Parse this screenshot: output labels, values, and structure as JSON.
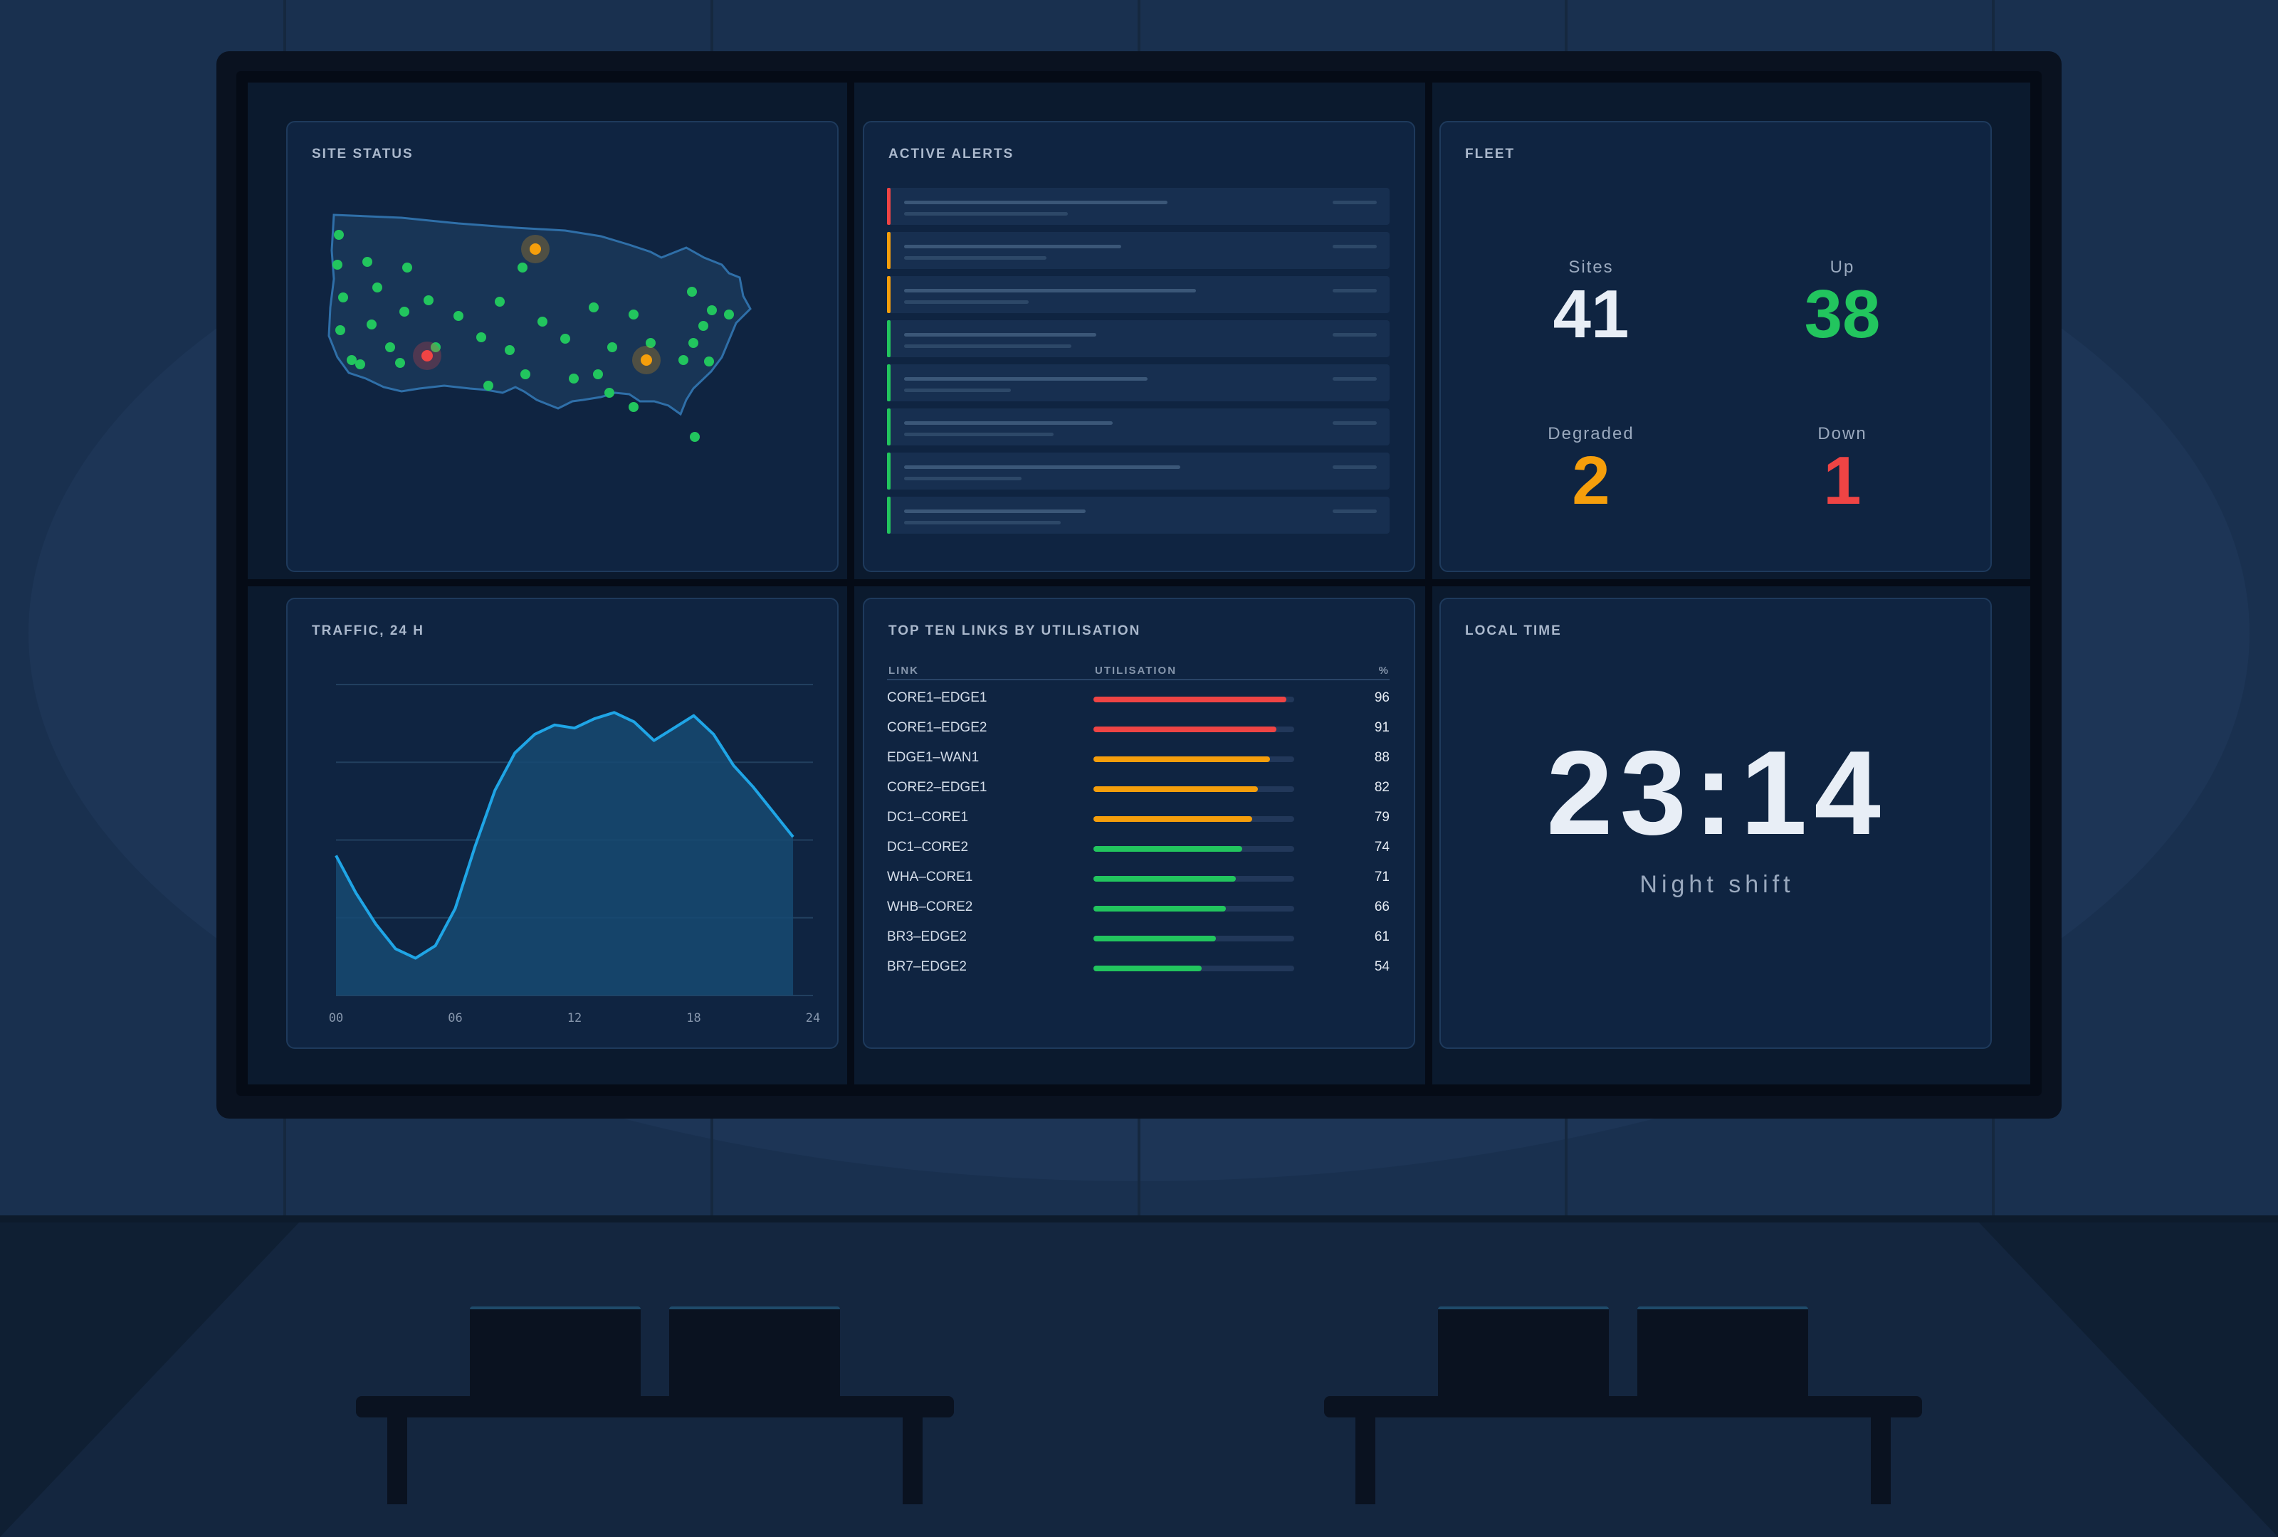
{
  "site_status": {
    "title": "SITE STATUS",
    "colors": {
      "ok": "#22c55e",
      "degraded": "#f59e0b",
      "down": "#ef4444",
      "land": "#183556",
      "outline": "#2f6fa8"
    }
  },
  "alerts": {
    "title": "ACTIVE ALERTS",
    "rows": [
      {
        "severity": "critical",
        "color": "#ef4444"
      },
      {
        "severity": "warning",
        "color": "#f59e0b"
      },
      {
        "severity": "warning",
        "color": "#f59e0b"
      },
      {
        "severity": "info",
        "color": "#22c55e"
      },
      {
        "severity": "info",
        "color": "#22c55e"
      },
      {
        "severity": "info",
        "color": "#22c55e"
      },
      {
        "severity": "info",
        "color": "#22c55e"
      },
      {
        "severity": "info",
        "color": "#22c55e"
      }
    ]
  },
  "fleet": {
    "title": "FLEET",
    "stats": [
      {
        "label": "Sites",
        "value": "41",
        "color": "#e8eef6"
      },
      {
        "label": "Up",
        "value": "38",
        "color": "#22c55e"
      },
      {
        "label": "Degraded",
        "value": "2",
        "color": "#f59e0b"
      },
      {
        "label": "Down",
        "value": "1",
        "color": "#ef4444"
      }
    ]
  },
  "traffic": {
    "title": "TRAFFIC, 24 H"
  },
  "links": {
    "title": "TOP TEN LINKS BY UTILISATION",
    "headers": {
      "link": "LINK",
      "utilisation": "UTILISATION",
      "pct": "%"
    },
    "rows": [
      {
        "name": "CORE1–EDGE1",
        "pct": "96",
        "value": 96,
        "color": "#ef4444"
      },
      {
        "name": "CORE1–EDGE2",
        "pct": "91",
        "value": 91,
        "color": "#ef4444"
      },
      {
        "name": "EDGE1–WAN1",
        "pct": "88",
        "value": 88,
        "color": "#f59e0b"
      },
      {
        "name": "CORE2–EDGE1",
        "pct": "82",
        "value": 82,
        "color": "#f59e0b"
      },
      {
        "name": "DC1–CORE1",
        "pct": "79",
        "value": 79,
        "color": "#f59e0b"
      },
      {
        "name": "DC1–CORE2",
        "pct": "74",
        "value": 74,
        "color": "#22c55e"
      },
      {
        "name": "WHA–CORE1",
        "pct": "71",
        "value": 71,
        "color": "#22c55e"
      },
      {
        "name": "WHB–CORE2",
        "pct": "66",
        "value": 66,
        "color": "#22c55e"
      },
      {
        "name": "BR3–EDGE2",
        "pct": "61",
        "value": 61,
        "color": "#22c55e"
      },
      {
        "name": "BR7–EDGE2",
        "pct": "54",
        "value": 54,
        "color": "#22c55e"
      }
    ]
  },
  "local_time": {
    "title": "LOCAL TIME",
    "time": "23:14",
    "shift": "Night shift"
  },
  "chart_data": {
    "type": "area",
    "title": "TRAFFIC, 24 H",
    "xlabel": "",
    "ylabel": "",
    "x_ticks": [
      "00",
      "06",
      "12",
      "18",
      "24"
    ],
    "xlim": [
      0,
      24
    ],
    "ylim": [
      0,
      100
    ],
    "grid": true,
    "color": "#1fa5e6",
    "series": [
      {
        "values": [
          {
            "x": 0,
            "y": 45
          },
          {
            "x": 1,
            "y": 33
          },
          {
            "x": 2,
            "y": 23
          },
          {
            "x": 3,
            "y": 15
          },
          {
            "x": 4,
            "y": 12
          },
          {
            "x": 5,
            "y": 16
          },
          {
            "x": 6,
            "y": 28
          },
          {
            "x": 7,
            "y": 48
          },
          {
            "x": 8,
            "y": 66
          },
          {
            "x": 9,
            "y": 78
          },
          {
            "x": 10,
            "y": 84
          },
          {
            "x": 11,
            "y": 87
          },
          {
            "x": 12,
            "y": 86
          },
          {
            "x": 13,
            "y": 89
          },
          {
            "x": 14,
            "y": 91
          },
          {
            "x": 15,
            "y": 88
          },
          {
            "x": 16,
            "y": 82
          },
          {
            "x": 17,
            "y": 86
          },
          {
            "x": 18,
            "y": 90
          },
          {
            "x": 19,
            "y": 84
          },
          {
            "x": 20,
            "y": 74
          },
          {
            "x": 21,
            "y": 67
          },
          {
            "x": 22,
            "y": 59
          },
          {
            "x": 23,
            "y": 51
          }
        ]
      }
    ]
  }
}
